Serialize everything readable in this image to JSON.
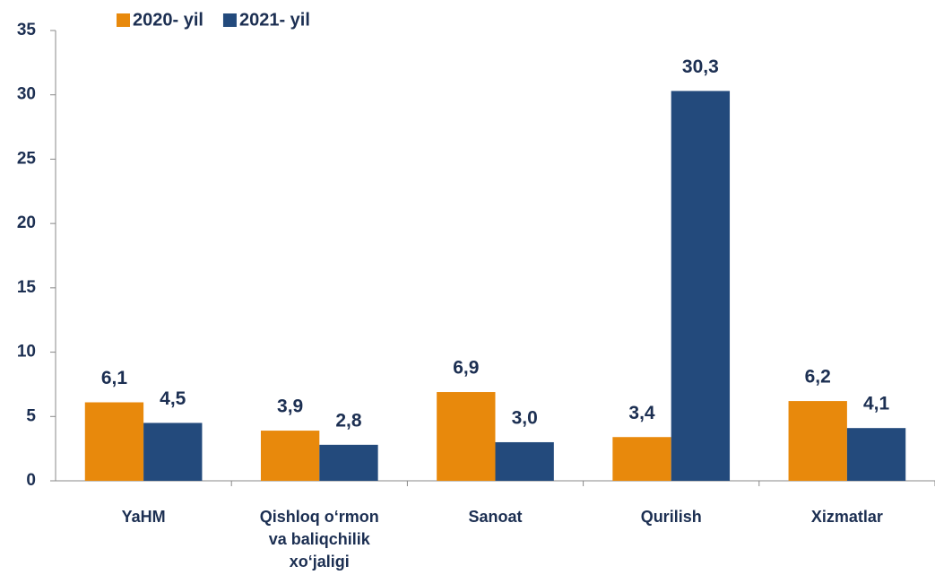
{
  "chart_data": {
    "type": "bar",
    "categories": [
      "YaHM",
      "Qishloq o‘rmon va baliqchilik xo‘jaligi",
      "Sanoat",
      "Qurilish",
      "Xizmatlar"
    ],
    "series": [
      {
        "name": "2020- yil",
        "color": "#e8890c",
        "values": [
          6.1,
          3.9,
          6.9,
          3.4,
          6.2
        ],
        "value_labels": [
          "6,1",
          "3,9",
          "6,9",
          "3,4",
          "6,2"
        ]
      },
      {
        "name": "2021- yil",
        "color": "#234a7c",
        "values": [
          4.5,
          2.8,
          3.0,
          30.3,
          4.1
        ],
        "value_labels": [
          "4,5",
          "2,8",
          "3,0",
          "30,3",
          "4,1"
        ]
      }
    ],
    "ylim": [
      0,
      35
    ],
    "yticks": [
      0,
      5,
      10,
      15,
      20,
      25,
      30,
      35
    ],
    "grid": false
  }
}
